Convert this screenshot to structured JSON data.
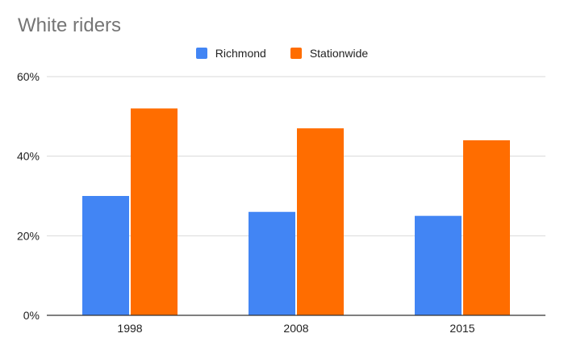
{
  "chart_data": {
    "type": "bar",
    "title": "White riders",
    "xlabel": "",
    "ylabel": "",
    "categories": [
      "1998",
      "2008",
      "2015"
    ],
    "series": [
      {
        "name": "Richmond",
        "values": [
          30,
          26,
          25
        ],
        "color": "#4285f4"
      },
      {
        "name": "Stationwide",
        "values": [
          52,
          47,
          44
        ],
        "color": "#ff6d00"
      }
    ],
    "ylim": [
      0,
      60
    ],
    "yticks": [
      {
        "value": 0,
        "label": "0%"
      },
      {
        "value": 20,
        "label": "20%"
      },
      {
        "value": 40,
        "label": "40%"
      },
      {
        "value": 60,
        "label": "60%"
      }
    ],
    "grid": true,
    "legend_position": "top-center"
  }
}
